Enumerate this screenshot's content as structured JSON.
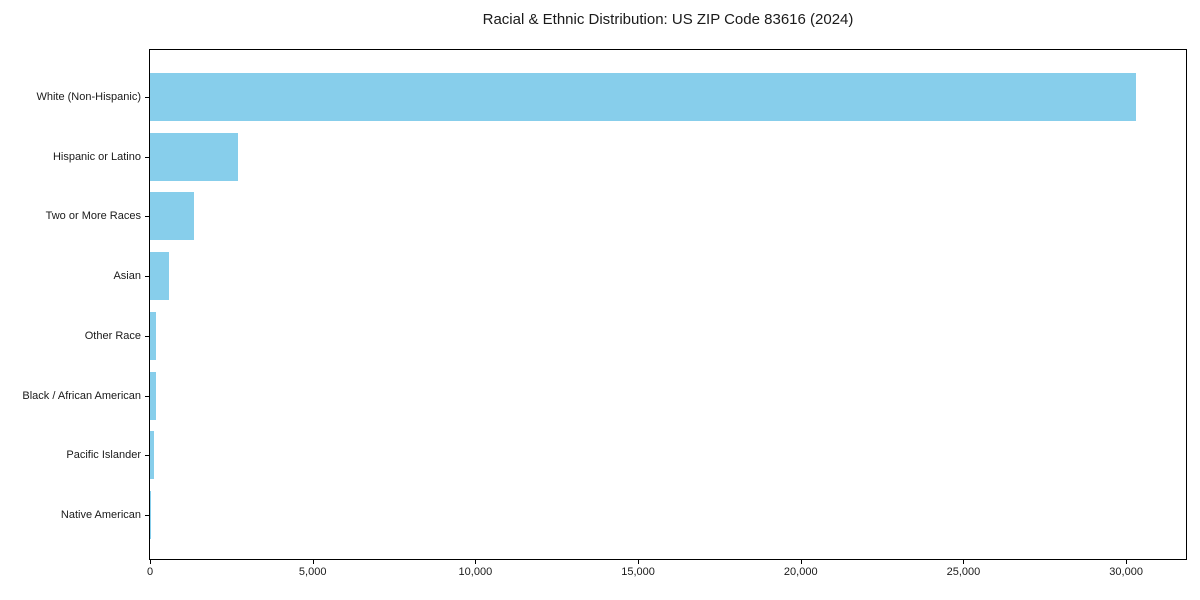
{
  "figure": {
    "background": "#ffffff"
  },
  "chart_data": {
    "type": "bar",
    "orientation": "horizontal",
    "title": "Racial & Ethnic Distribution: US ZIP Code 83616 (2024)",
    "categories": [
      "White (Non-Hispanic)",
      "Hispanic or Latino",
      "Two or More Races",
      "Asian",
      "Other Race",
      "Black / African American",
      "Pacific Islander",
      "Native American"
    ],
    "values": [
      30300,
      2700,
      1350,
      580,
      195,
      185,
      115,
      25
    ],
    "xlabel": "",
    "ylabel": "",
    "xlim": [
      0,
      31840
    ],
    "x_ticks": [
      0,
      5000,
      10000,
      15000,
      20000,
      25000,
      30000
    ],
    "x_tick_labels": [
      "0",
      "5,000",
      "10,000",
      "15,000",
      "20,000",
      "25,000",
      "30,000"
    ],
    "bar_color": "#87ceeb",
    "axis_color": "#000000",
    "text_color": "#1a1a1a",
    "grid": false,
    "legend": false
  }
}
